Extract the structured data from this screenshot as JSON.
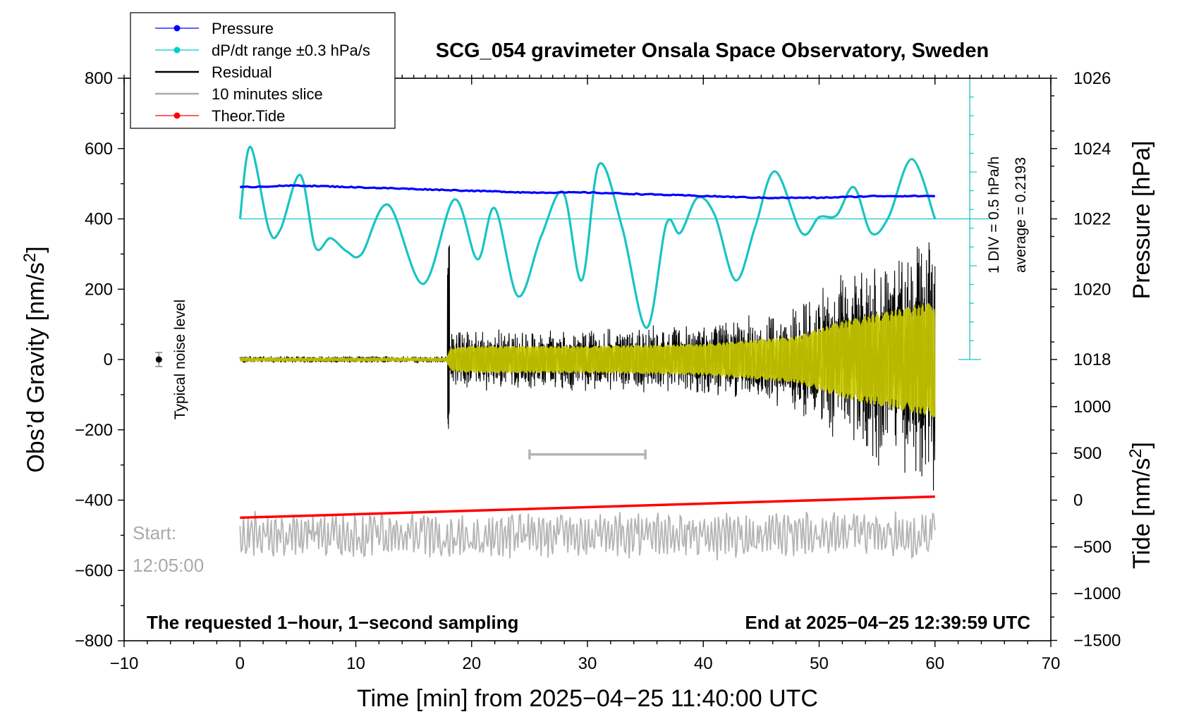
{
  "chart_data": {
    "type": "line",
    "title": "SCG_054 gravimeter Onsala Space Observatory, Sweden",
    "xlabel": "Time [min] from 2025−04−25 11:40:00 UTC",
    "ylabel_left": "Obs’d Gravity [nm/s²]",
    "ylabel_left_base": "Obs’d Gravity [nm/s",
    "ylabel_left_sup": "2",
    "ylabel_left_end": "]",
    "ylabel_right_top": "Pressure [hPa]",
    "ylabel_right_bottom": "Tide [nm/s²]",
    "ylabel_right_bottom_base": "Tide [nm/s",
    "ylabel_right_bottom_sup": "2",
    "ylabel_right_bottom_end": "]",
    "xlim": [
      -10,
      70
    ],
    "ylim_left": [
      -800,
      800
    ],
    "ylim_pressure": [
      1016,
      1028
    ],
    "ylim_tide": [
      -1500,
      1500
    ],
    "x_ticks": [
      "−10",
      "0",
      "10",
      "20",
      "30",
      "40",
      "50",
      "60",
      "70"
    ],
    "x_tick_values": [
      -10,
      0,
      10,
      20,
      30,
      40,
      50,
      60,
      70
    ],
    "y_ticks_left": [
      "800",
      "600",
      "400",
      "200",
      "0",
      "−200",
      "−400",
      "−600",
      "−800"
    ],
    "y_tick_values_left": [
      800,
      600,
      400,
      200,
      0,
      -200,
      -400,
      -600,
      -800
    ],
    "y_ticks_pressure": [
      "1026",
      "1024",
      "1022",
      "1020",
      "1018"
    ],
    "y_tick_values_pressure": [
      1026,
      1024,
      1022,
      1020,
      1018
    ],
    "y_ticks_tide": [
      "1000",
      "500",
      "0",
      "−500",
      "−1000",
      "−1500"
    ],
    "y_tick_values_tide": [
      1000,
      500,
      0,
      -500,
      -1000,
      -1500
    ],
    "legend_position": "top-left",
    "legend": [
      {
        "name": "Pressure",
        "color": "#0000ff",
        "marker": true
      },
      {
        "name": "dP/dt range ±0.3 hPa/s",
        "color": "#00cccc",
        "marker": true
      },
      {
        "name": "Residual",
        "color": "#000000",
        "marker": false
      },
      {
        "name": "10 minutes slice",
        "color": "#aaaaaa",
        "marker": false
      },
      {
        "name": "Theor.Tide",
        "color": "#ff0000",
        "marker": true
      }
    ],
    "colors": {
      "pressure": "#0000ff",
      "dpdt": "#19c4c4",
      "residual": "#000000",
      "filtered": "#cccc00",
      "slice": "#b4b4b4",
      "tide": "#ff0000",
      "scale_bar": "#19c4c4",
      "noise_bar": "#999999"
    },
    "pressure_series": {
      "x": [
        0,
        5,
        10,
        15,
        20,
        25,
        30,
        35,
        40,
        45,
        50,
        55,
        60
      ],
      "y": [
        1022.9,
        1022.95,
        1022.9,
        1022.85,
        1022.8,
        1022.75,
        1022.75,
        1022.7,
        1022.65,
        1022.6,
        1022.6,
        1022.65,
        1022.65
      ]
    },
    "dpdt_series": {
      "baseline": 400,
      "x": [
        0,
        0.9,
        2.5,
        3.5,
        5.2,
        6.5,
        7.8,
        9.2,
        10.5,
        12.8,
        15.8,
        18.5,
        20.5,
        22,
        24,
        26,
        27.9,
        29.5,
        31,
        33,
        35.1,
        36.8,
        38,
        39.5,
        41,
        42.8,
        44.5,
        46.2,
        48.5,
        50,
        51.5,
        53,
        54.5,
        56,
        58,
        60
      ],
      "y": [
        400,
        605,
        370,
        370,
        525,
        320,
        345,
        308,
        300,
        440,
        215,
        455,
        285,
        430,
        180,
        350,
        475,
        225,
        555,
        375,
        90,
        385,
        360,
        460,
        410,
        225,
        380,
        535,
        360,
        405,
        410,
        490,
        360,
        405,
        570,
        400
      ]
    },
    "scale_bar": {
      "div_label": "1 DIV = 0.5 hPa/h",
      "average_label": "average = 0.2193"
    },
    "residual_envelope": {
      "x": [
        0,
        17.8,
        18.2,
        20,
        30,
        40,
        48,
        52,
        56,
        60
      ],
      "amplitude": [
        8,
        8,
        60,
        70,
        70,
        80,
        120,
        200,
        250,
        300
      ]
    },
    "noise_marker": {
      "x": -7,
      "y": 0,
      "err": 20,
      "label": "Typical noise level"
    },
    "slice_bar": {
      "x_start": 25,
      "x_end": 35,
      "y": -270
    },
    "theor_tide": {
      "x": [
        0,
        60
      ],
      "y": [
        -450,
        -390
      ]
    },
    "slice_series": {
      "center": -500,
      "amplitude": 55
    },
    "start_label": "Start:",
    "start_time": "12:05:00",
    "footer_left": "The requested 1−hour, 1−second sampling",
    "footer_right": "End at 2025−04−25 12:39:59 UTC"
  }
}
